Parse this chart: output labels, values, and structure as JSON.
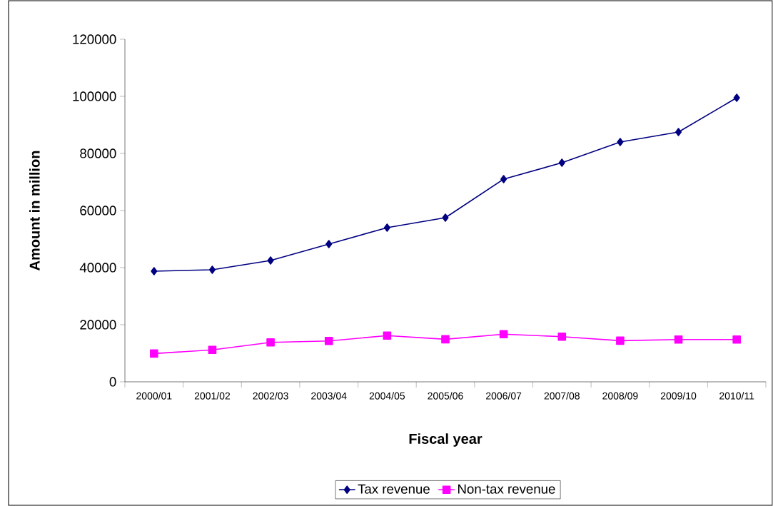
{
  "chart_data": {
    "type": "line",
    "xlabel": "Fiscal year",
    "ylabel": "Amount in million",
    "categories": [
      "2000/01",
      "2001/02",
      "2002/03",
      "2003/04",
      "2004/05",
      "2005/06",
      "2006/07",
      "2007/08",
      "2008/09",
      "2009/10",
      "2010/11"
    ],
    "series": [
      {
        "name": "Tax revenue",
        "color": "#000080",
        "marker": "diamond",
        "values": [
          38750,
          39250,
          42500,
          48250,
          54000,
          57500,
          71000,
          76750,
          84000,
          87500,
          99500
        ]
      },
      {
        "name": "Non-tax revenue",
        "color": "#ff00ff",
        "marker": "square",
        "values": [
          9900,
          11200,
          13800,
          14300,
          16200,
          14900,
          16700,
          15800,
          14400,
          14800,
          14800
        ]
      }
    ],
    "ylim": [
      0,
      120000
    ],
    "yticks": [
      0,
      20000,
      40000,
      60000,
      80000,
      100000,
      120000
    ],
    "grid": false,
    "legend": "bottom"
  }
}
